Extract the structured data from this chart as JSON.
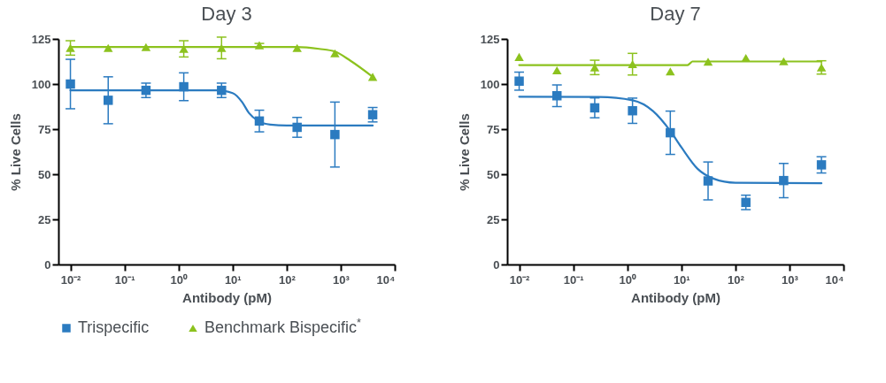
{
  "chart_data": [
    {
      "type": "scatter",
      "title": "Day 3",
      "xlabel": "Antibody (pM)",
      "ylabel": "% Live Cells",
      "log": "x",
      "xlim": [
        0.006,
        10000
      ],
      "xticks": [
        {
          "value": 0.01,
          "label": "10⁻²"
        },
        {
          "value": 0.1,
          "label": "10⁻¹"
        },
        {
          "value": 1,
          "label": "10⁰"
        },
        {
          "value": 10,
          "label": "10¹"
        },
        {
          "value": 100,
          "label": "10²"
        },
        {
          "value": 1000,
          "label": "10³"
        },
        {
          "value": 10000,
          "label": "10⁴"
        }
      ],
      "ylim": [
        0,
        125
      ],
      "yticks": [
        0,
        25,
        50,
        75,
        100,
        125
      ],
      "legend": "bottom",
      "x": [
        0.01,
        0.05,
        0.25,
        1.25,
        6.25,
        31.25,
        156.25,
        781.25,
        3906.25
      ],
      "series": [
        {
          "name": "Trispecific",
          "marker": "square",
          "color": "#2b7bc0",
          "values": [
            100,
            91,
            96.5,
            98.5,
            96.5,
            79.5,
            76,
            72,
            83
          ],
          "errors": [
            13.7,
            13,
            4,
            7.7,
            4,
            6,
            5.5,
            18,
            4
          ]
        },
        {
          "name": "Benchmark Bispecific$^{*}$",
          "marker": "triangle",
          "color": "#8cc21e",
          "values": [
            120,
            120,
            120.5,
            119.5,
            120,
            121.5,
            120,
            117,
            104
          ],
          "errors": [
            4,
            null,
            null,
            4.5,
            6,
            1,
            null,
            null,
            null
          ]
        },
        {
          "type": "line",
          "color": "#2b7bc0",
          "x": [
            0.01,
            5,
            10,
            15,
            20,
            30,
            50,
            100,
            3906.25
          ],
          "values": [
            96.5,
            96.5,
            95,
            90,
            84,
            79.5,
            77.5,
            77,
            77
          ]
        },
        {
          "type": "line",
          "color": "#8cc21e",
          "x": [
            0.01,
            150,
            400,
            781.25,
            1500,
            3906.25
          ],
          "values": [
            120.5,
            120.5,
            119.5,
            118,
            113,
            104
          ]
        }
      ]
    },
    {
      "type": "scatter",
      "title": "Day 7",
      "xlabel": "Antibody (pM)",
      "ylabel": "% Live Cells",
      "log": "x",
      "xlim": [
        0.006,
        10000
      ],
      "xticks": [
        {
          "value": 0.01,
          "label": "10⁻²"
        },
        {
          "value": 0.1,
          "label": "10⁻¹"
        },
        {
          "value": 1,
          "label": "10⁰"
        },
        {
          "value": 10,
          "label": "10¹"
        },
        {
          "value": 100,
          "label": "10²"
        },
        {
          "value": 1000,
          "label": "10³"
        },
        {
          "value": 10000,
          "label": "10⁴"
        }
      ],
      "ylim": [
        0,
        125
      ],
      "yticks": [
        0,
        25,
        50,
        75,
        100,
        125
      ],
      "legend": "bottom",
      "x": [
        0.01,
        0.05,
        0.25,
        1.25,
        6.25,
        31.25,
        156.25,
        781.25,
        3906.25
      ],
      "series": [
        {
          "name": "Trispecific",
          "marker": "square",
          "color": "#2b7bc0",
          "values": [
            101.6,
            93.5,
            86.8,
            85.2,
            73,
            46.3,
            34.4,
            46.5,
            55.2
          ],
          "errors": [
            5,
            6,
            5.5,
            7,
            12,
            10.5,
            4,
            9.5,
            4.5
          ]
        },
        {
          "name": "Benchmark Bispecific$^{*}$",
          "marker": "triangle",
          "color": "#8cc21e",
          "values": [
            115,
            107.6,
            109.2,
            111,
            107,
            112.4,
            114.5,
            112.6,
            109.2
          ],
          "errors": [
            null,
            null,
            4,
            6,
            null,
            null,
            null,
            null,
            3.7
          ]
        },
        {
          "type": "line",
          "color": "#2b7bc0",
          "x": [
            0.01,
            0.3,
            1.25,
            3,
            6.25,
            10,
            20,
            40,
            100,
            3906.25
          ],
          "values": [
            93,
            92.8,
            91,
            85,
            74,
            65,
            53,
            47.5,
            45.3,
            45
          ]
        },
        {
          "type": "line",
          "color": "#8cc21e",
          "x": [
            0.01,
            13,
            14.5,
            16,
            3906.25
          ],
          "values": [
            110.5,
            110.5,
            111.5,
            112.5,
            112.5
          ]
        }
      ]
    }
  ]
}
